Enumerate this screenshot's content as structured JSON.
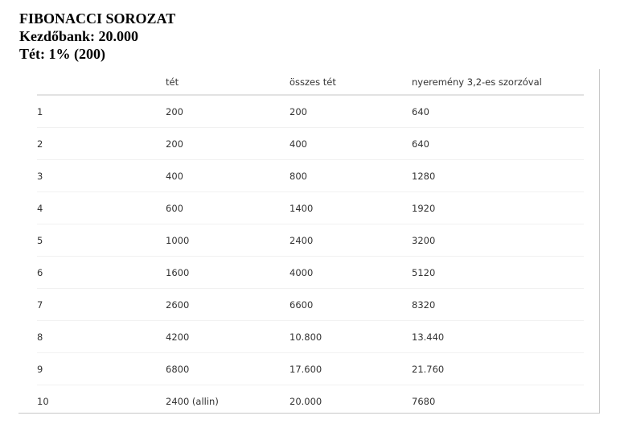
{
  "heading": {
    "line1": "FIBONACCI SOROZAT",
    "line2": "Kezdőbank: 20.000",
    "line3": "Tét: 1% (200)"
  },
  "table": {
    "columns": [
      "",
      "tét",
      "összes tét",
      "nyeremény 3,2-es szorzóval"
    ],
    "rows": [
      [
        "1",
        "200",
        "200",
        "640"
      ],
      [
        "2",
        "200",
        "400",
        "640"
      ],
      [
        "3",
        "400",
        "800",
        "1280"
      ],
      [
        "4",
        "600",
        "1400",
        "1920"
      ],
      [
        "5",
        "1000",
        "2400",
        "3200"
      ],
      [
        "6",
        "1600",
        "4000",
        "5120"
      ],
      [
        "7",
        "2600",
        "6600",
        "8320"
      ],
      [
        "8",
        "4200",
        "10.800",
        "13.440"
      ],
      [
        "9",
        "6800",
        "17.600",
        "21.760"
      ],
      [
        "10",
        "2400 (allin)",
        "20.000",
        "7680"
      ]
    ]
  }
}
